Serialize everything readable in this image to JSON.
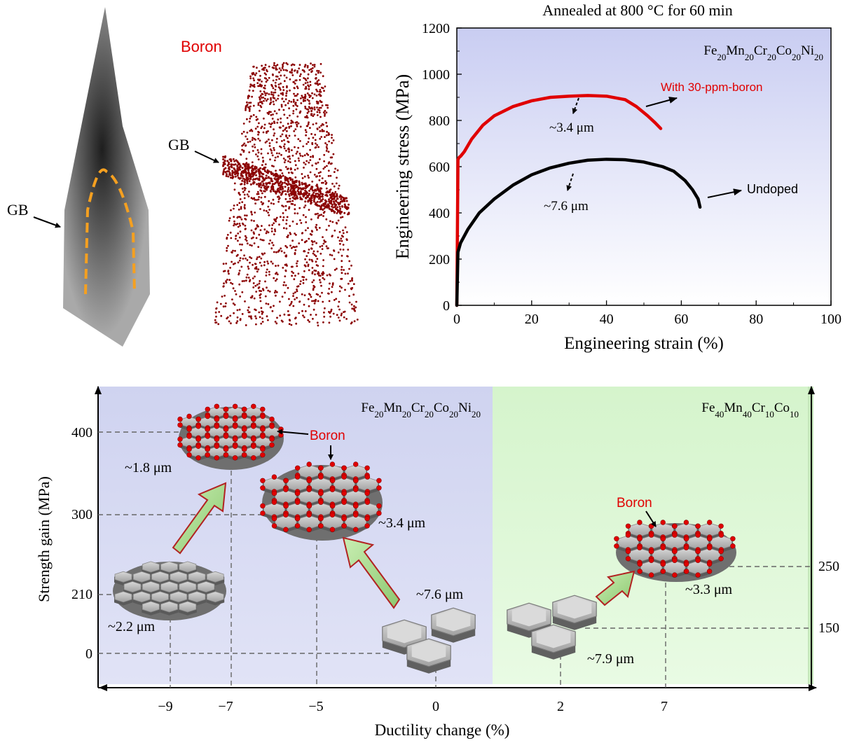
{
  "colors": {
    "boron": "#e00000",
    "undoped": "#000000",
    "grain": "#a8a8a8",
    "atom": "#8b0000",
    "arrow_fill": "#a6d98a",
    "arrow_edge": "#b22222",
    "panel_left": "#d9dbf2",
    "panel_right": "#ddf6d6"
  },
  "icons": [
    "hexagonal-grain-icon",
    "red-boron-atom-icon",
    "green-arrow-icon"
  ],
  "apt": {
    "gb_label_left": "GB",
    "gb_label_right": "GB",
    "boron_label": "Boron"
  },
  "chart_data": [
    {
      "type": "line",
      "title": "Annealed at 800 °C for 60 min",
      "alloy_label": {
        "base": "Fe",
        "parts": [
          [
            "Fe",
            "20"
          ],
          [
            "Mn",
            "20"
          ],
          [
            "Cr",
            "20"
          ],
          [
            "Co",
            "20"
          ],
          [
            "Ni",
            "20"
          ]
        ]
      },
      "xlabel": "Engineering strain (%)",
      "ylabel": "Engineering stress (MPa)",
      "xlim": [
        0,
        100
      ],
      "ylim": [
        0,
        1200
      ],
      "x_ticks": [
        "0",
        "20",
        "40",
        "60",
        "80",
        "100"
      ],
      "y_ticks": [
        "0",
        "200",
        "400",
        "600",
        "800",
        "1000",
        "1200"
      ],
      "series": [
        {
          "name": "With 30-ppm-boron",
          "color": "#e00000",
          "grain_size": "~3.4 μm",
          "x": [
            0,
            0.3,
            0.6,
            1,
            2,
            4,
            7,
            10,
            15,
            20,
            25,
            30,
            35,
            40,
            45,
            48,
            51,
            53,
            54.5
          ],
          "y": [
            0,
            630,
            640,
            645,
            665,
            720,
            780,
            820,
            860,
            885,
            900,
            905,
            908,
            905,
            890,
            860,
            820,
            790,
            765
          ]
        },
        {
          "name": "Undoped",
          "color": "#000000",
          "grain_size": "~7.6 μm",
          "x": [
            0,
            0.3,
            1,
            3,
            6,
            10,
            15,
            20,
            25,
            30,
            35,
            40,
            45,
            50,
            55,
            58,
            61,
            63,
            64.5,
            65
          ],
          "y": [
            0,
            230,
            270,
            330,
            400,
            460,
            520,
            565,
            595,
            615,
            628,
            632,
            630,
            620,
            600,
            580,
            540,
            500,
            460,
            425
          ]
        }
      ]
    },
    {
      "type": "scatter",
      "xlabel": "Ductility change (%)",
      "ylabel": "Strength gain (MPa)",
      "x_ticks": [
        "−9",
        "−7",
        "−5",
        "0",
        "2",
        "7"
      ],
      "y_ticks_left": [
        "0",
        "210",
        "300",
        "400"
      ],
      "y_ticks_right": [
        "150",
        "250"
      ],
      "panels": [
        {
          "alloy_label": [
            [
              "Fe",
              "20"
            ],
            [
              "Mn",
              "20"
            ],
            [
              "Cr",
              "20"
            ],
            [
              "Co",
              "20"
            ],
            [
              "Ni",
              "20"
            ]
          ],
          "points": [
            {
              "label": "~1.8 μm",
              "x": -7,
              "y": 400,
              "boron": true
            },
            {
              "label": "~2.2 μm",
              "x": -9,
              "y": 210,
              "boron": false
            },
            {
              "label": "~3.4 μm",
              "x": -5,
              "y": 300,
              "boron": true
            },
            {
              "label": "~7.6 μm",
              "x": 0,
              "y": 0,
              "boron": false
            }
          ],
          "boron_label": "Boron"
        },
        {
          "alloy_label": [
            [
              "Fe",
              "40"
            ],
            [
              "Mn",
              "40"
            ],
            [
              "Cr",
              "10"
            ],
            [
              "Co",
              "10"
            ]
          ],
          "points": [
            {
              "label": "~3.3 μm",
              "x": 7,
              "y": 250,
              "boron": true
            },
            {
              "label": "~7.9 μm",
              "x": 2,
              "y": 150,
              "boron": false
            }
          ],
          "boron_label": "Boron"
        }
      ]
    }
  ]
}
